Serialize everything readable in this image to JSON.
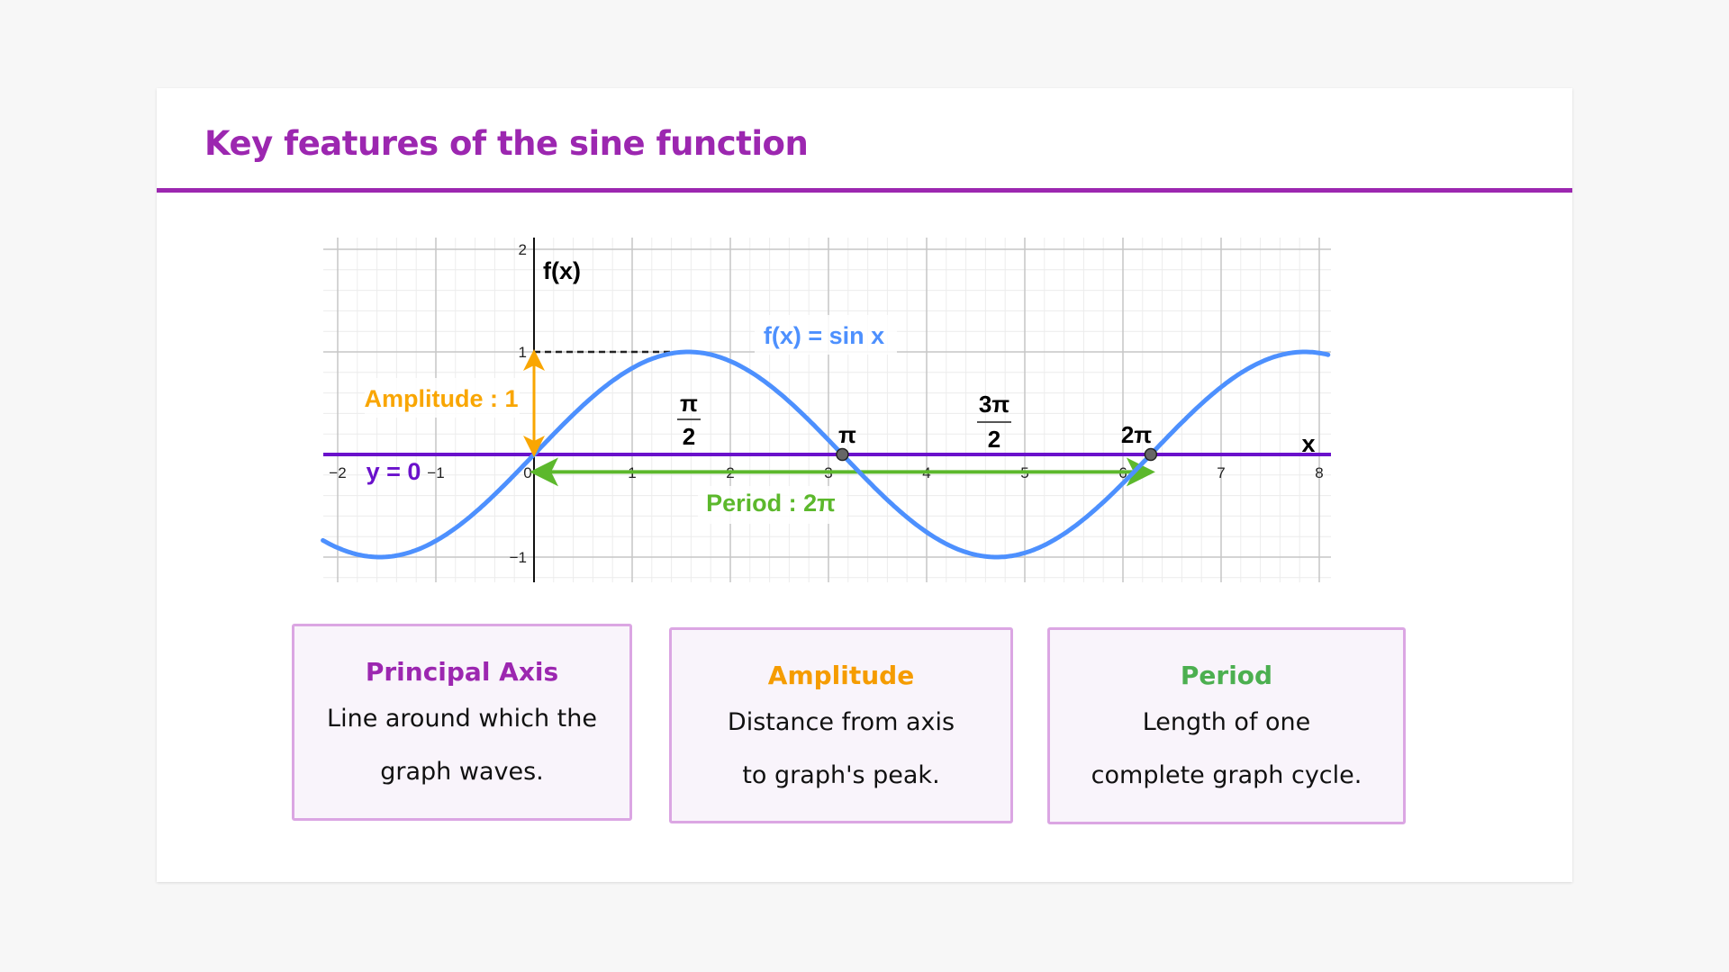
{
  "page_title": "Key features of the sine function",
  "cards": [
    {
      "title": "Principal Axis",
      "lines": [
        "Line around which the",
        "graph waves."
      ],
      "color": "#9c27b0"
    },
    {
      "title": "Amplitude",
      "lines": [
        "Distance from axis",
        "to graph's peak."
      ],
      "color": "#f59c00"
    },
    {
      "title": "Period",
      "lines": [
        "Length of one",
        "complete graph cycle."
      ],
      "color": "#4caf50"
    }
  ],
  "chart_data": {
    "type": "line",
    "function": "sin",
    "xlim": [
      -2.15,
      8.1
    ],
    "ylim": [
      -1.25,
      2.1
    ],
    "x_ticks": [
      -2,
      -1,
      0,
      1,
      2,
      3,
      4,
      5,
      6,
      7,
      8
    ],
    "x_tick_labels": [
      "−2",
      "−1",
      "0",
      "1",
      "2",
      "3",
      "4",
      "5",
      "6",
      "7",
      "8"
    ],
    "y_ticks": [
      2,
      1,
      -1
    ],
    "y_tick_labels": [
      "2",
      "1",
      "−1"
    ],
    "xlabel": "x",
    "ylabel": "f(x)",
    "grid": true,
    "series": [
      {
        "name": "f(x) = sin x",
        "color": "#4d90fe"
      }
    ],
    "points": [
      {
        "x": 3.14159,
        "y": 0,
        "label": "π"
      },
      {
        "x": 6.28318,
        "y": 0,
        "label": "2π"
      }
    ],
    "fraction_labels": [
      {
        "num": "π",
        "den": "2",
        "x": 1.5708
      },
      {
        "num": "3π",
        "den": "2",
        "x": 4.7124
      }
    ],
    "principal_axis": {
      "label": "y = 0",
      "y": 0,
      "color": "#6a11cb"
    },
    "amplitude": {
      "label": "Amplitude : 1",
      "value": 1,
      "color": "#f9a602"
    },
    "period": {
      "label": "Period : 2π",
      "value": 6.28318,
      "color": "#5cb82c"
    }
  }
}
